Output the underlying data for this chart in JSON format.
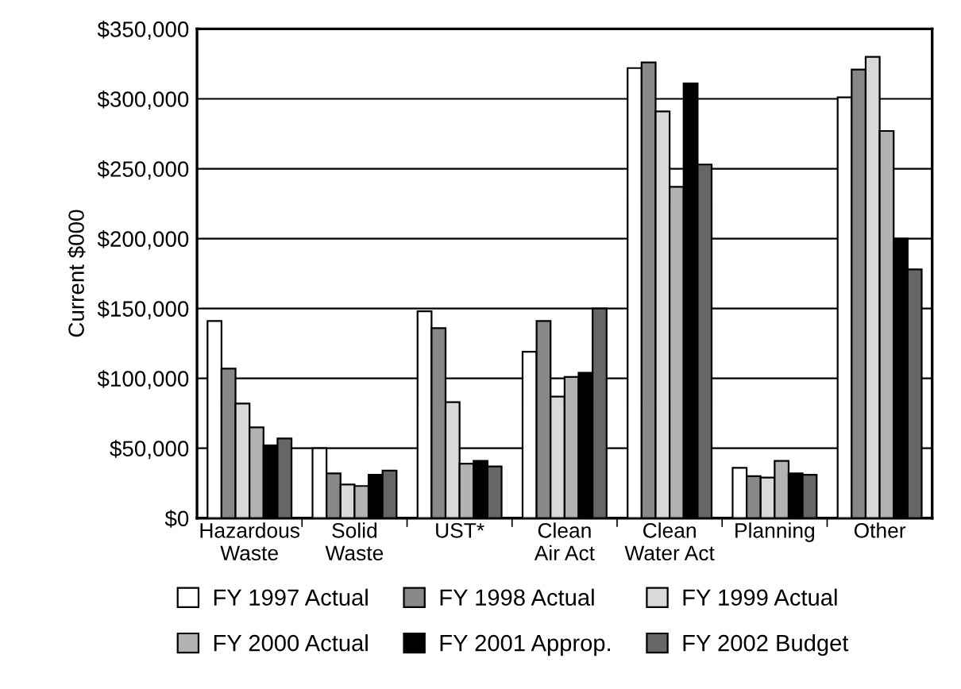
{
  "chart_data": {
    "type": "bar",
    "ylabel": "Current $000",
    "categories": [
      "Hazardous\nWaste",
      "Solid\nWaste",
      "UST*",
      "Clean\nAir Act",
      "Clean\nWater Act",
      "Planning",
      "Other"
    ],
    "series": [
      {
        "name": "FY 1997 Actual",
        "color": "#ffffff",
        "values": [
          141000,
          50000,
          148000,
          119000,
          322000,
          36000,
          301000
        ]
      },
      {
        "name": "FY 1998 Actual",
        "color": "#888888",
        "values": [
          107000,
          32000,
          136000,
          141000,
          326000,
          30000,
          321000
        ]
      },
      {
        "name": "FY 1999 Actual",
        "color": "#d9d9d9",
        "values": [
          82000,
          24000,
          83000,
          87000,
          291000,
          29000,
          330000
        ]
      },
      {
        "name": "FY 2000 Actual",
        "color": "#b2b2b2",
        "values": [
          65000,
          23000,
          39000,
          101000,
          237000,
          41000,
          277000
        ]
      },
      {
        "name": "FY 2001 Approp.",
        "color": "#000000",
        "values": [
          52000,
          31000,
          41000,
          104000,
          311000,
          32000,
          200000
        ]
      },
      {
        "name": "FY 2002 Budget",
        "color": "#666666",
        "values": [
          57000,
          34000,
          37000,
          150000,
          253000,
          31000,
          178000
        ]
      }
    ],
    "ylim": [
      0,
      350000
    ],
    "yticks": [
      {
        "value": 0,
        "label": "$0"
      },
      {
        "value": 50000,
        "label": "$50,000"
      },
      {
        "value": 100000,
        "label": "$100,000"
      },
      {
        "value": 150000,
        "label": "$150,000"
      },
      {
        "value": 200000,
        "label": "$200,000"
      },
      {
        "value": 250000,
        "label": "$250,000"
      },
      {
        "value": 300000,
        "label": "$300,000"
      },
      {
        "value": 350000,
        "label": "$350,000"
      }
    ],
    "grid": "y",
    "legend": "bottom"
  }
}
